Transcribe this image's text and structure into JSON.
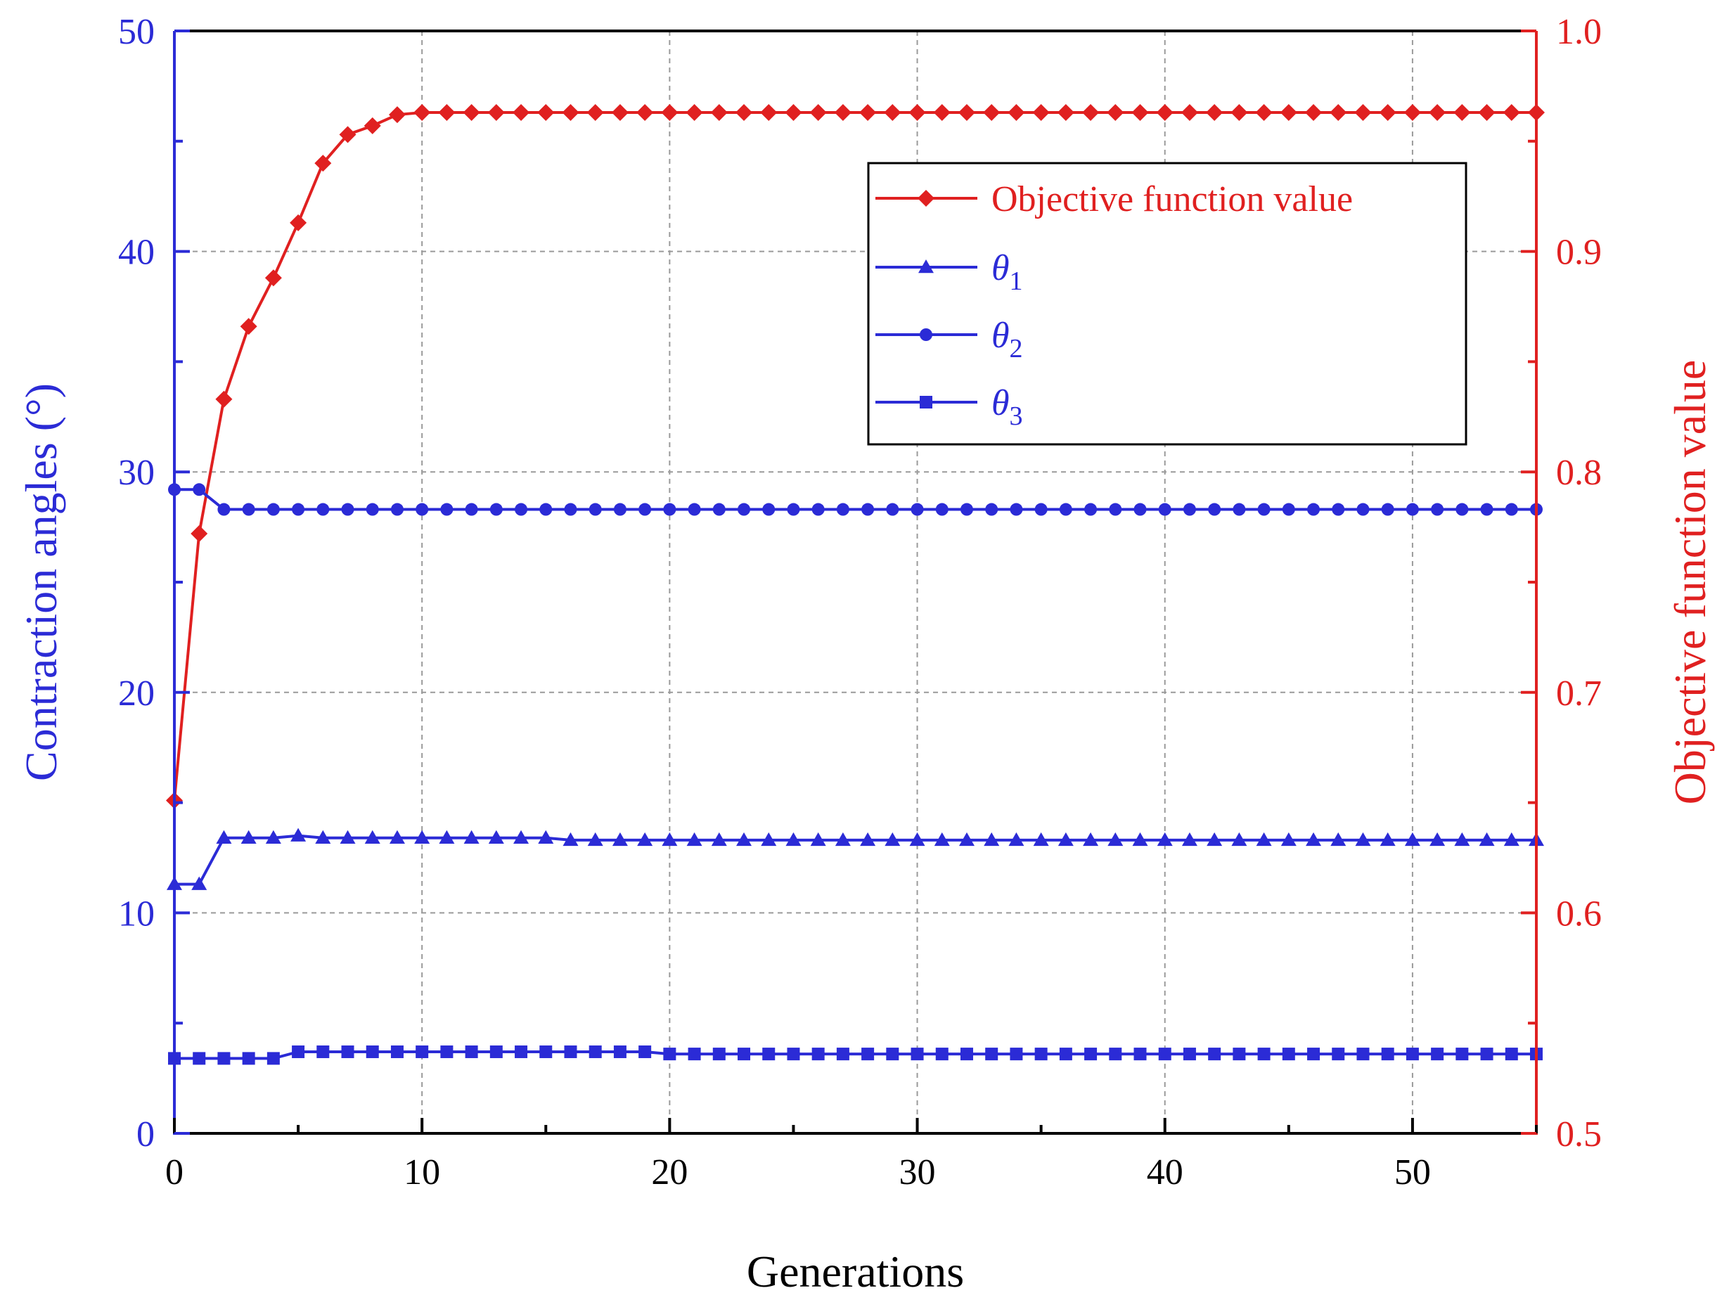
{
  "chart_data": {
    "type": "line",
    "x": [
      0,
      1,
      2,
      3,
      4,
      5,
      6,
      7,
      8,
      9,
      10,
      11,
      12,
      13,
      14,
      15,
      16,
      17,
      18,
      19,
      20,
      21,
      22,
      23,
      24,
      25,
      26,
      27,
      28,
      29,
      30,
      31,
      32,
      33,
      34,
      35,
      36,
      37,
      38,
      39,
      40,
      41,
      42,
      43,
      44,
      45,
      46,
      47,
      48,
      49,
      50,
      51,
      52,
      53,
      54,
      55
    ],
    "xlabel": "Generations",
    "xlim": [
      0,
      55
    ],
    "xticks": [
      0,
      10,
      20,
      30,
      40,
      50
    ],
    "xtick_labels": [
      "0",
      "10",
      "20",
      "30",
      "40",
      "50"
    ],
    "y_left": {
      "label": "Contraction angles (°)",
      "lim": [
        0,
        50
      ],
      "ticks": [
        0,
        10,
        20,
        30,
        40,
        50
      ],
      "tick_labels": [
        "0",
        "10",
        "20",
        "30",
        "40",
        "50"
      ],
      "color": "#2b2bd6"
    },
    "y_right": {
      "label": "Objective function value",
      "lim": [
        0.5,
        1.0
      ],
      "ticks": [
        0.5,
        0.6,
        0.7,
        0.8,
        0.9,
        1.0
      ],
      "tick_labels": [
        "0.5",
        "0.6",
        "0.7",
        "0.8",
        "0.9",
        "1.0"
      ],
      "color": "#e02020"
    },
    "grid": true,
    "legend_position": "top-right",
    "series": [
      {
        "name": "Objective function value",
        "axis": "right",
        "marker": "diamond",
        "color": "#e02020",
        "values": [
          0.651,
          0.772,
          0.833,
          0.866,
          0.888,
          0.913,
          0.94,
          0.953,
          0.957,
          0.962,
          0.963,
          0.963,
          0.963,
          0.963,
          0.963,
          0.963,
          0.963,
          0.963,
          0.963,
          0.963,
          0.963,
          0.963,
          0.963,
          0.963,
          0.963,
          0.963,
          0.963,
          0.963,
          0.963,
          0.963,
          0.963,
          0.963,
          0.963,
          0.963,
          0.963,
          0.963,
          0.963,
          0.963,
          0.963,
          0.963,
          0.963,
          0.963,
          0.963,
          0.963,
          0.963,
          0.963,
          0.963,
          0.963,
          0.963,
          0.963,
          0.963,
          0.963,
          0.963,
          0.963,
          0.963,
          0.963
        ]
      },
      {
        "name": "θ1",
        "label_base": "θ",
        "label_sub": "1",
        "axis": "left",
        "marker": "triangle",
        "color": "#2b2bd6",
        "values": [
          11.3,
          11.3,
          13.4,
          13.4,
          13.4,
          13.5,
          13.4,
          13.4,
          13.4,
          13.4,
          13.4,
          13.4,
          13.4,
          13.4,
          13.4,
          13.4,
          13.3,
          13.3,
          13.3,
          13.3,
          13.3,
          13.3,
          13.3,
          13.3,
          13.3,
          13.3,
          13.3,
          13.3,
          13.3,
          13.3,
          13.3,
          13.3,
          13.3,
          13.3,
          13.3,
          13.3,
          13.3,
          13.3,
          13.3,
          13.3,
          13.3,
          13.3,
          13.3,
          13.3,
          13.3,
          13.3,
          13.3,
          13.3,
          13.3,
          13.3,
          13.3,
          13.3,
          13.3,
          13.3,
          13.3,
          13.3
        ]
      },
      {
        "name": "θ2",
        "label_base": "θ",
        "label_sub": "2",
        "axis": "left",
        "marker": "circle",
        "color": "#2b2bd6",
        "values": [
          29.2,
          29.2,
          28.3,
          28.3,
          28.3,
          28.3,
          28.3,
          28.3,
          28.3,
          28.3,
          28.3,
          28.3,
          28.3,
          28.3,
          28.3,
          28.3,
          28.3,
          28.3,
          28.3,
          28.3,
          28.3,
          28.3,
          28.3,
          28.3,
          28.3,
          28.3,
          28.3,
          28.3,
          28.3,
          28.3,
          28.3,
          28.3,
          28.3,
          28.3,
          28.3,
          28.3,
          28.3,
          28.3,
          28.3,
          28.3,
          28.3,
          28.3,
          28.3,
          28.3,
          28.3,
          28.3,
          28.3,
          28.3,
          28.3,
          28.3,
          28.3,
          28.3,
          28.3,
          28.3,
          28.3,
          28.3
        ]
      },
      {
        "name": "θ3",
        "label_base": "θ",
        "label_sub": "3",
        "axis": "left",
        "marker": "square",
        "color": "#2b2bd6",
        "values": [
          3.4,
          3.4,
          3.4,
          3.4,
          3.4,
          3.7,
          3.7,
          3.7,
          3.7,
          3.7,
          3.7,
          3.7,
          3.7,
          3.7,
          3.7,
          3.7,
          3.7,
          3.7,
          3.7,
          3.7,
          3.6,
          3.6,
          3.6,
          3.6,
          3.6,
          3.6,
          3.6,
          3.6,
          3.6,
          3.6,
          3.6,
          3.6,
          3.6,
          3.6,
          3.6,
          3.6,
          3.6,
          3.6,
          3.6,
          3.6,
          3.6,
          3.6,
          3.6,
          3.6,
          3.6,
          3.6,
          3.6,
          3.6,
          3.6,
          3.6,
          3.6,
          3.6,
          3.6,
          3.6,
          3.6,
          3.6
        ]
      }
    ]
  }
}
